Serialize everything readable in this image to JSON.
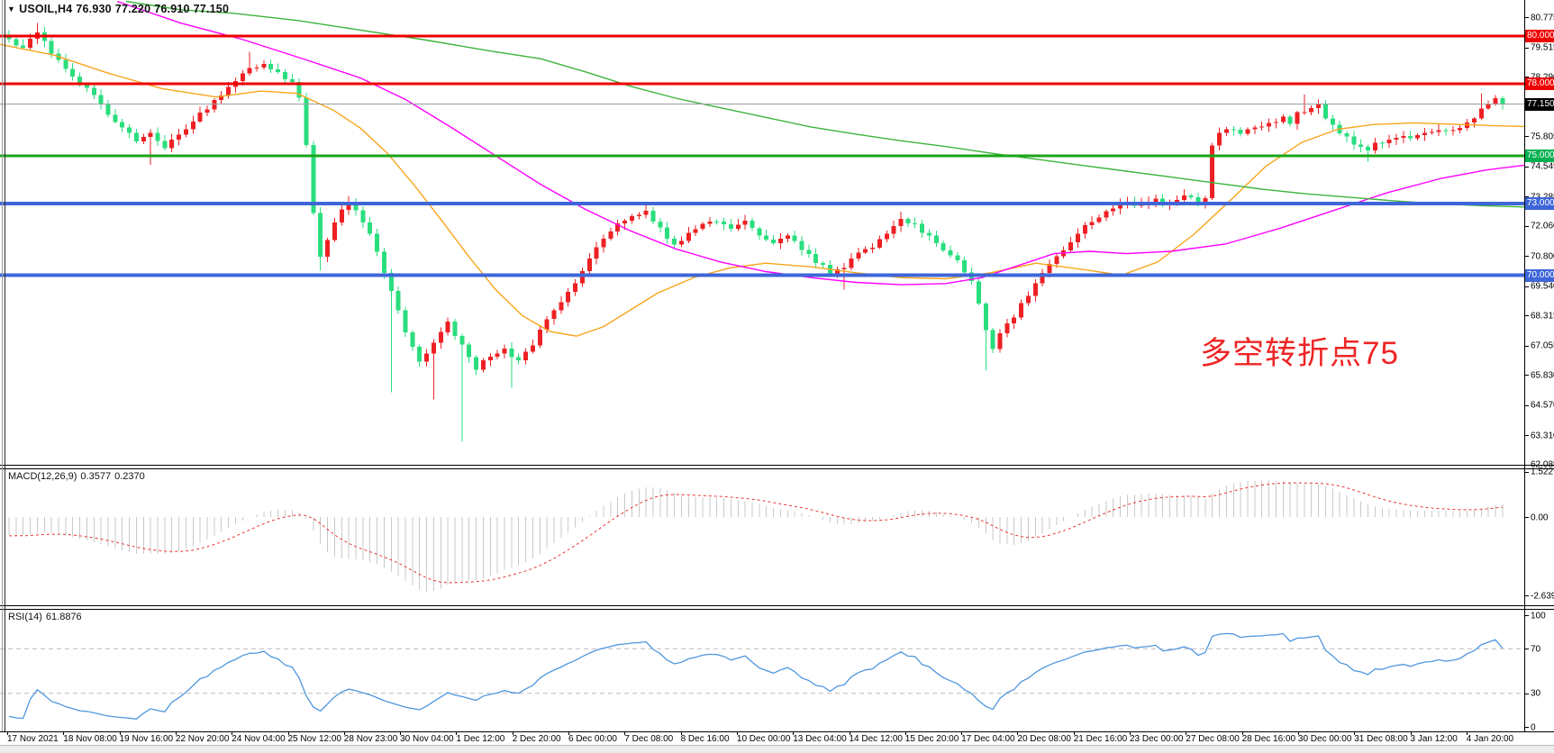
{
  "chart": {
    "symbol": "USOIL,H4",
    "ohlc": {
      "open": "76.930",
      "high": "77.220",
      "low": "76.910",
      "close": "77.150"
    },
    "annotation": {
      "text": "多空转折点75",
      "color": "#ee2525"
    },
    "current_price": "77.150"
  },
  "indicators": {
    "macd": {
      "label": "MACD(12,26,9)",
      "value_main": "0.3577",
      "value_signal": "0.2370",
      "axis": [
        1.5227,
        0.0,
        -2.6392
      ]
    },
    "rsi": {
      "label": "RSI(14)",
      "value": "61.8876",
      "axis": [
        100,
        70,
        30,
        0
      ],
      "levels": [
        70,
        30
      ]
    }
  },
  "colors": {
    "bull": "#ee2024",
    "bear": "#2ade7e",
    "ma_fast": "#f7a51b",
    "ma_mid": "#ff00ff",
    "ma_slow": "#3cb43c",
    "macd_hist": "#c9c9c9",
    "macd_signal": "#e83535",
    "rsi_line": "#4f97de",
    "rsi_grid": "#bbbbbb",
    "price_line": "#9aa0a6"
  },
  "chart_data": {
    "type": "candlestick",
    "symbol": "USOIL",
    "timeframe": "H4",
    "title": "USOIL,H4 76.930 77.220 76.910 77.150",
    "y_ticks": [
      80.775,
      79.515,
      78.29,
      75.805,
      74.545,
      73.285,
      72.06,
      70.8,
      69.54,
      68.315,
      67.055,
      65.83,
      64.57,
      63.31,
      62.085
    ],
    "levels": [
      {
        "price": 80.0,
        "color": "#ee0000",
        "width": 3,
        "badge": {
          "text": "80.000",
          "bg": "#ee0000"
        }
      },
      {
        "price": 78.0,
        "color": "#ee0000",
        "width": 3,
        "badge": {
          "text": "78.000",
          "bg": "#ee0000"
        }
      },
      {
        "price": 77.15,
        "color": "#9aa0a6",
        "width": 1,
        "badge": {
          "text": "77.150",
          "bg": "#000000"
        }
      },
      {
        "price": 75.0,
        "color": "#1aa51a",
        "width": 3,
        "badge": {
          "text": "75.000",
          "bg": "#00b050"
        }
      },
      {
        "price": 73.0,
        "color": "#3e66d9",
        "width": 4,
        "badge": {
          "text": "73.000",
          "bg": "#3e66d9"
        }
      },
      {
        "price": 70.0,
        "color": "#3e66d9",
        "width": 4,
        "badge": {
          "text": "70.000",
          "bg": "#3e66d9"
        }
      }
    ],
    "x_labels": [
      "17 Nov 2021",
      "18 Nov 08:00",
      "19 Nov 16:00",
      "22 Nov 20:00",
      "24 Nov 04:00",
      "25 Nov 12:00",
      "28 Nov 23:00",
      "30 Nov 04:00",
      "1 Dec 12:00",
      "2 Dec 20:00",
      "6 Dec 00:00",
      "7 Dec 08:00",
      "8 Dec 16:00",
      "10 Dec 00:00",
      "13 Dec 04:00",
      "14 Dec 12:00",
      "15 Dec 20:00",
      "17 Dec 04:00",
      "20 Dec 08:00",
      "21 Dec 16:00",
      "23 Dec 00:00",
      "27 Dec 08:00",
      "28 Dec 16:00",
      "30 Dec 00:00",
      "31 Dec 08:00",
      "3 Jan 12:00",
      "4 Jan 20:00"
    ],
    "candle_anchors": [
      [
        -30,
        83.5
      ],
      [
        -22,
        81.9
      ],
      [
        -14,
        80.8
      ],
      [
        -6,
        80.2
      ],
      [
        0,
        79.9
      ],
      [
        2,
        79.5
      ],
      [
        4,
        80.1
      ],
      [
        6,
        79.3
      ],
      [
        9,
        78.3
      ],
      [
        12,
        77.5
      ],
      [
        15,
        76.4
      ],
      [
        18,
        75.6
      ],
      [
        20,
        75.9
      ],
      [
        22,
        75.3
      ],
      [
        25,
        76.2
      ],
      [
        28,
        77.0
      ],
      [
        31,
        77.9
      ],
      [
        34,
        78.6
      ],
      [
        36,
        78.9
      ],
      [
        38,
        78.4
      ],
      [
        40,
        78.1
      ],
      [
        41,
        77.5
      ],
      [
        42,
        75.5
      ],
      [
        43,
        72.7
      ],
      [
        44,
        70.8
      ],
      [
        45,
        71.5
      ],
      [
        46,
        72.3
      ],
      [
        48,
        73.0
      ],
      [
        50,
        72.3
      ],
      [
        52,
        71.0
      ],
      [
        54,
        69.3
      ],
      [
        56,
        67.6
      ],
      [
        58,
        66.4
      ],
      [
        60,
        67.2
      ],
      [
        62,
        68.0
      ],
      [
        64,
        67.0
      ],
      [
        66,
        66.1
      ],
      [
        68,
        66.6
      ],
      [
        70,
        66.9
      ],
      [
        72,
        66.4
      ],
      [
        74,
        67.1
      ],
      [
        76,
        68.2
      ],
      [
        78,
        68.8
      ],
      [
        80,
        69.6
      ],
      [
        82,
        70.6
      ],
      [
        84,
        71.6
      ],
      [
        86,
        72.2
      ],
      [
        88,
        72.4
      ],
      [
        90,
        72.6
      ],
      [
        92,
        72.0
      ],
      [
        94,
        71.2
      ],
      [
        96,
        71.7
      ],
      [
        98,
        72.2
      ],
      [
        100,
        72.3
      ],
      [
        102,
        71.9
      ],
      [
        104,
        72.2
      ],
      [
        106,
        71.7
      ],
      [
        108,
        71.3
      ],
      [
        110,
        71.6
      ],
      [
        112,
        71.1
      ],
      [
        114,
        70.6
      ],
      [
        116,
        70.1
      ],
      [
        118,
        70.4
      ],
      [
        120,
        70.9
      ],
      [
        122,
        71.2
      ],
      [
        124,
        71.7
      ],
      [
        126,
        72.3
      ],
      [
        128,
        72.1
      ],
      [
        130,
        71.6
      ],
      [
        132,
        71.1
      ],
      [
        134,
        70.6
      ],
      [
        136,
        69.8
      ],
      [
        137,
        68.8
      ],
      [
        138,
        67.6
      ],
      [
        139,
        66.9
      ],
      [
        140,
        67.5
      ],
      [
        142,
        68.3
      ],
      [
        144,
        69.2
      ],
      [
        146,
        70.1
      ],
      [
        148,
        70.8
      ],
      [
        150,
        71.3
      ],
      [
        152,
        72.0
      ],
      [
        154,
        72.5
      ],
      [
        156,
        72.8
      ],
      [
        158,
        73.0
      ],
      [
        160,
        72.9
      ],
      [
        162,
        73.1
      ],
      [
        164,
        73.0
      ],
      [
        166,
        73.3
      ],
      [
        168,
        73.1
      ],
      [
        169,
        73.3
      ],
      [
        170,
        75.5
      ],
      [
        171,
        75.9
      ],
      [
        172,
        76.1
      ],
      [
        174,
        75.9
      ],
      [
        176,
        76.2
      ],
      [
        178,
        76.4
      ],
      [
        180,
        76.6
      ],
      [
        181,
        76.4
      ],
      [
        182,
        76.8
      ],
      [
        184,
        77.0
      ],
      [
        185,
        77.1
      ],
      [
        186,
        76.6
      ],
      [
        188,
        76.0
      ],
      [
        190,
        75.5
      ],
      [
        192,
        75.3
      ],
      [
        194,
        75.6
      ],
      [
        196,
        75.8
      ],
      [
        198,
        75.7
      ],
      [
        200,
        75.9
      ],
      [
        202,
        76.1
      ],
      [
        204,
        76.0
      ],
      [
        206,
        76.3
      ],
      [
        207,
        76.6
      ],
      [
        208,
        76.9
      ],
      [
        209,
        77.25
      ],
      [
        210,
        77.4
      ],
      [
        211,
        77.15
      ]
    ],
    "wick_overrides": [
      {
        "i": 4,
        "h": 80.55
      },
      {
        "i": 20,
        "l": 74.62
      },
      {
        "i": 34,
        "h": 79.35
      },
      {
        "i": 44,
        "l": 70.18
      },
      {
        "i": 54,
        "l": 65.1
      },
      {
        "i": 60,
        "l": 64.8
      },
      {
        "i": 64,
        "l": 63.05
      },
      {
        "i": 71,
        "l": 65.3
      },
      {
        "i": 90,
        "h": 72.95
      },
      {
        "i": 118,
        "l": 69.4
      },
      {
        "i": 126,
        "h": 72.65
      },
      {
        "i": 138,
        "l": 66.0
      },
      {
        "i": 183,
        "h": 77.55
      },
      {
        "i": 192,
        "l": 74.75
      },
      {
        "i": 208,
        "h": 77.6
      }
    ],
    "ma_lines": [
      {
        "name": "ma-fast-orange",
        "color": "#f7a51b",
        "points": [
          [
            0,
            79.65
          ],
          [
            60,
            79.2
          ],
          [
            120,
            78.45
          ],
          [
            180,
            77.8
          ],
          [
            240,
            77.45
          ],
          [
            290,
            77.7
          ],
          [
            330,
            77.6
          ],
          [
            370,
            76.9
          ],
          [
            400,
            76.15
          ],
          [
            430,
            75.1
          ],
          [
            460,
            73.75
          ],
          [
            490,
            72.3
          ],
          [
            520,
            70.8
          ],
          [
            550,
            69.4
          ],
          [
            580,
            68.3
          ],
          [
            610,
            67.65
          ],
          [
            640,
            67.45
          ],
          [
            670,
            67.85
          ],
          [
            700,
            68.55
          ],
          [
            730,
            69.25
          ],
          [
            770,
            69.9
          ],
          [
            810,
            70.3
          ],
          [
            850,
            70.5
          ],
          [
            900,
            70.35
          ],
          [
            950,
            70.1
          ],
          [
            1000,
            69.9
          ],
          [
            1050,
            69.85
          ],
          [
            1100,
            70.1
          ],
          [
            1150,
            70.5
          ],
          [
            1200,
            70.25
          ],
          [
            1245,
            70.0
          ],
          [
            1285,
            70.55
          ],
          [
            1325,
            71.7
          ],
          [
            1365,
            73.1
          ],
          [
            1405,
            74.55
          ],
          [
            1445,
            75.55
          ],
          [
            1485,
            76.1
          ],
          [
            1525,
            76.3
          ],
          [
            1570,
            76.37
          ],
          [
            1620,
            76.3
          ],
          [
            1660,
            76.25
          ],
          [
            1692,
            76.22
          ]
        ]
      },
      {
        "name": "ma-mid-magenta",
        "color": "#ff00ff",
        "points": [
          [
            130,
            81.45
          ],
          [
            200,
            80.55
          ],
          [
            270,
            79.85
          ],
          [
            340,
            79.0
          ],
          [
            400,
            78.25
          ],
          [
            450,
            77.35
          ],
          [
            500,
            76.2
          ],
          [
            550,
            75.0
          ],
          [
            600,
            73.8
          ],
          [
            650,
            72.75
          ],
          [
            700,
            71.85
          ],
          [
            750,
            71.1
          ],
          [
            800,
            70.55
          ],
          [
            850,
            70.15
          ],
          [
            900,
            69.9
          ],
          [
            950,
            69.7
          ],
          [
            1000,
            69.6
          ],
          [
            1050,
            69.65
          ],
          [
            1090,
            69.9
          ],
          [
            1130,
            70.4
          ],
          [
            1170,
            70.9
          ],
          [
            1210,
            71.0
          ],
          [
            1250,
            70.9
          ],
          [
            1300,
            71.0
          ],
          [
            1360,
            71.3
          ],
          [
            1420,
            71.95
          ],
          [
            1480,
            72.7
          ],
          [
            1540,
            73.45
          ],
          [
            1600,
            74.05
          ],
          [
            1650,
            74.4
          ],
          [
            1692,
            74.6
          ]
        ]
      },
      {
        "name": "ma-slow-green",
        "color": "#3cb43c",
        "points": [
          [
            140,
            81.45
          ],
          [
            200,
            81.1
          ],
          [
            260,
            80.95
          ],
          [
            330,
            80.65
          ],
          [
            400,
            80.25
          ],
          [
            470,
            79.85
          ],
          [
            540,
            79.4
          ],
          [
            600,
            79.05
          ],
          [
            650,
            78.5
          ],
          [
            700,
            77.9
          ],
          [
            750,
            77.4
          ],
          [
            800,
            77.0
          ],
          [
            850,
            76.6
          ],
          [
            900,
            76.2
          ],
          [
            950,
            75.9
          ],
          [
            1000,
            75.62
          ],
          [
            1050,
            75.38
          ],
          [
            1100,
            75.1
          ],
          [
            1150,
            74.85
          ],
          [
            1200,
            74.6
          ],
          [
            1250,
            74.35
          ],
          [
            1300,
            74.1
          ],
          [
            1350,
            73.85
          ],
          [
            1400,
            73.6
          ],
          [
            1450,
            73.4
          ],
          [
            1500,
            73.25
          ],
          [
            1550,
            73.1
          ],
          [
            1600,
            72.98
          ],
          [
            1650,
            72.9
          ],
          [
            1692,
            72.85
          ]
        ]
      }
    ],
    "macd_params": [
      12,
      26,
      9
    ],
    "rsi_period": 14
  }
}
